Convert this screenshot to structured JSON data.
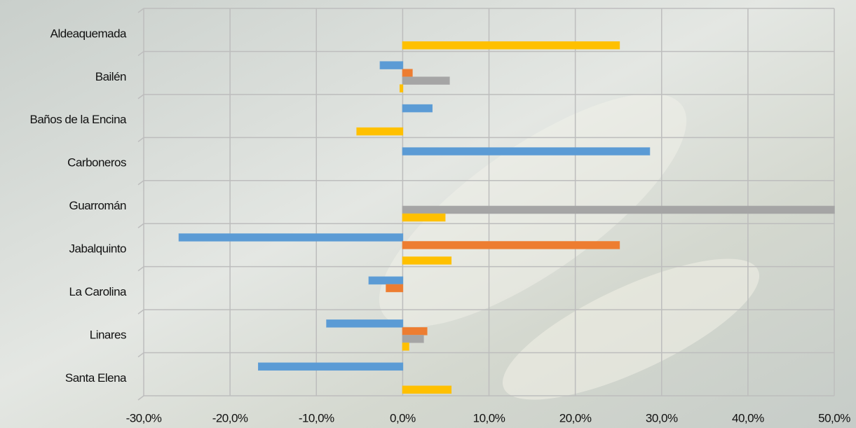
{
  "chart_data": {
    "type": "hbar",
    "categories": [
      "Aldeaquemada",
      "Bailén",
      "Baños de la Encina",
      "Carboneros",
      "Guarromán",
      "Jabalquinto",
      "La Carolina",
      "Linares",
      "Santa Elena"
    ],
    "series": [
      {
        "color": "#5b9bd5",
        "values": [
          0,
          -2.6,
          3.4,
          28.6,
          0,
          -25.9,
          -3.9,
          -8.8,
          -16.7
        ]
      },
      {
        "color": "#ed7d31",
        "values": [
          0,
          1.1,
          0,
          0,
          0,
          25.1,
          -1.9,
          2.8,
          0
        ]
      },
      {
        "color": "#a5a5a5",
        "values": [
          0,
          5.4,
          0,
          0,
          50,
          0,
          0,
          2.4,
          0
        ]
      },
      {
        "color": "#ffc000",
        "values": [
          25.1,
          -0.3,
          -5.3,
          0,
          4.9,
          5.6,
          0,
          0.7,
          5.6
        ]
      }
    ],
    "xlim": [
      -30,
      50
    ],
    "xticks": [
      {
        "value": -30,
        "label": "-30,0%"
      },
      {
        "value": -20,
        "label": "-20,0%"
      },
      {
        "value": -10,
        "label": "-10,0%"
      },
      {
        "value": 0,
        "label": "0,0%"
      },
      {
        "value": 10,
        "label": "10,0%"
      },
      {
        "value": 20,
        "label": "20,0%"
      },
      {
        "value": 30,
        "label": "30,0%"
      },
      {
        "value": 40,
        "label": "40,0%"
      },
      {
        "value": 50,
        "label": "50,0%"
      }
    ],
    "grid": true
  }
}
